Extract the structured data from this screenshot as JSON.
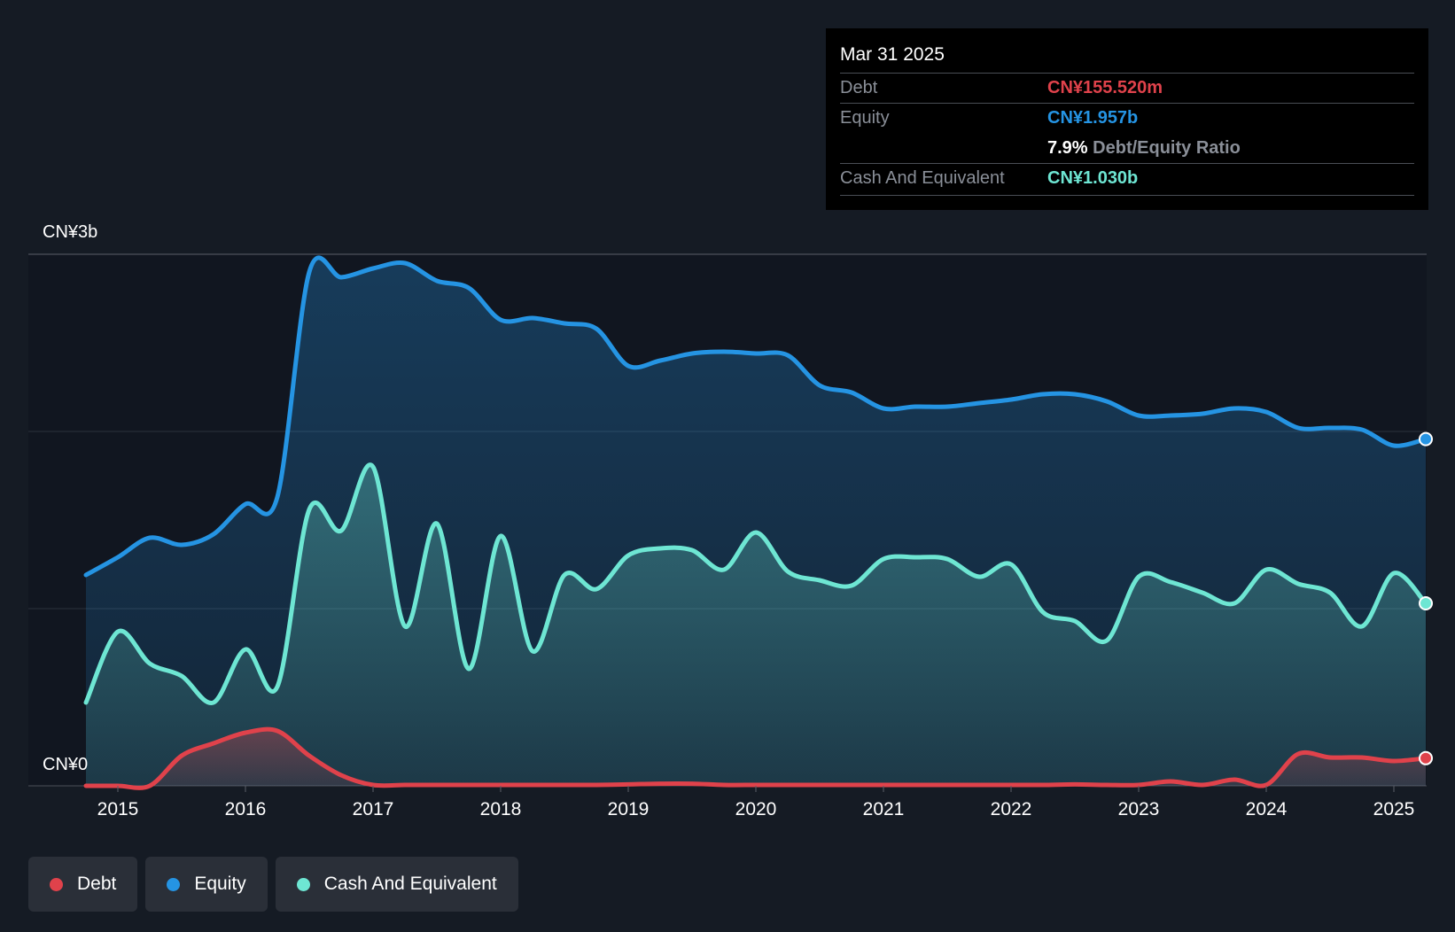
{
  "colors": {
    "debt": "#e0424b",
    "equity": "#2594e3",
    "cash": "#6ee6d3",
    "background": "#151b24",
    "plot_background": "#111620"
  },
  "tooltip": {
    "date": "Mar 31 2025",
    "debt_label": "Debt",
    "debt_value": "CN¥155.520m",
    "equity_label": "Equity",
    "equity_value": "CN¥1.957b",
    "ratio_value": "7.9%",
    "ratio_label": "Debt/Equity Ratio",
    "cash_label": "Cash And Equivalent",
    "cash_value": "CN¥1.030b"
  },
  "legend": {
    "debt": "Debt",
    "equity": "Equity",
    "cash": "Cash And Equivalent"
  },
  "chart_data": {
    "type": "area",
    "title": "",
    "xlabel": "",
    "ylabel": "",
    "ylim": [
      0,
      3
    ],
    "y_unit": "CN¥ billions",
    "y_tick_labels": {
      "top": "CN¥3b",
      "bottom": "CN¥0"
    },
    "grid": true,
    "legend_position": "bottom-left",
    "x_ticks": [
      "2015",
      "2016",
      "2017",
      "2018",
      "2019",
      "2020",
      "2021",
      "2022",
      "2023",
      "2024",
      "2025"
    ],
    "series": [
      {
        "name": "Equity",
        "points": [
          [
            2014.75,
            1.19
          ],
          [
            2015.0,
            1.29
          ],
          [
            2015.25,
            1.4
          ],
          [
            2015.5,
            1.36
          ],
          [
            2015.75,
            1.42
          ],
          [
            2016.0,
            1.59
          ],
          [
            2016.25,
            1.63
          ],
          [
            2016.5,
            2.9
          ],
          [
            2016.75,
            2.87
          ],
          [
            2017.0,
            2.92
          ],
          [
            2017.25,
            2.95
          ],
          [
            2017.5,
            2.85
          ],
          [
            2017.75,
            2.81
          ],
          [
            2018.0,
            2.63
          ],
          [
            2018.25,
            2.64
          ],
          [
            2018.5,
            2.61
          ],
          [
            2018.75,
            2.58
          ],
          [
            2019.0,
            2.37
          ],
          [
            2019.25,
            2.4
          ],
          [
            2019.5,
            2.44
          ],
          [
            2019.75,
            2.45
          ],
          [
            2020.0,
            2.44
          ],
          [
            2020.25,
            2.43
          ],
          [
            2020.5,
            2.26
          ],
          [
            2020.75,
            2.22
          ],
          [
            2021.0,
            2.13
          ],
          [
            2021.25,
            2.14
          ],
          [
            2021.5,
            2.14
          ],
          [
            2021.75,
            2.16
          ],
          [
            2022.0,
            2.18
          ],
          [
            2022.25,
            2.21
          ],
          [
            2022.5,
            2.21
          ],
          [
            2022.75,
            2.17
          ],
          [
            2023.0,
            2.09
          ],
          [
            2023.25,
            2.09
          ],
          [
            2023.5,
            2.1
          ],
          [
            2023.75,
            2.13
          ],
          [
            2024.0,
            2.11
          ],
          [
            2024.25,
            2.02
          ],
          [
            2024.5,
            2.02
          ],
          [
            2024.75,
            2.01
          ],
          [
            2025.0,
            1.92
          ],
          [
            2025.25,
            1.957
          ]
        ]
      },
      {
        "name": "Cash And Equivalent",
        "points": [
          [
            2014.75,
            0.47
          ],
          [
            2015.0,
            0.87
          ],
          [
            2015.25,
            0.69
          ],
          [
            2015.5,
            0.62
          ],
          [
            2015.75,
            0.47
          ],
          [
            2016.0,
            0.77
          ],
          [
            2016.25,
            0.56
          ],
          [
            2016.5,
            1.56
          ],
          [
            2016.75,
            1.44
          ],
          [
            2017.0,
            1.8
          ],
          [
            2017.25,
            0.9
          ],
          [
            2017.5,
            1.48
          ],
          [
            2017.75,
            0.66
          ],
          [
            2018.0,
            1.41
          ],
          [
            2018.25,
            0.76
          ],
          [
            2018.5,
            1.19
          ],
          [
            2018.75,
            1.11
          ],
          [
            2019.0,
            1.3
          ],
          [
            2019.25,
            1.34
          ],
          [
            2019.5,
            1.33
          ],
          [
            2019.75,
            1.22
          ],
          [
            2020.0,
            1.43
          ],
          [
            2020.25,
            1.21
          ],
          [
            2020.5,
            1.16
          ],
          [
            2020.75,
            1.13
          ],
          [
            2021.0,
            1.28
          ],
          [
            2021.25,
            1.29
          ],
          [
            2021.5,
            1.28
          ],
          [
            2021.75,
            1.18
          ],
          [
            2022.0,
            1.25
          ],
          [
            2022.25,
            0.98
          ],
          [
            2022.5,
            0.93
          ],
          [
            2022.75,
            0.82
          ],
          [
            2023.0,
            1.18
          ],
          [
            2023.25,
            1.15
          ],
          [
            2023.5,
            1.09
          ],
          [
            2023.75,
            1.03
          ],
          [
            2024.0,
            1.22
          ],
          [
            2024.25,
            1.14
          ],
          [
            2024.5,
            1.09
          ],
          [
            2024.75,
            0.9
          ],
          [
            2025.0,
            1.2
          ],
          [
            2025.25,
            1.03
          ]
        ]
      },
      {
        "name": "Debt",
        "points": [
          [
            2014.75,
            0.0
          ],
          [
            2015.0,
            0.0
          ],
          [
            2015.25,
            0.0
          ],
          [
            2015.5,
            0.17
          ],
          [
            2015.75,
            0.24
          ],
          [
            2016.0,
            0.3
          ],
          [
            2016.25,
            0.31
          ],
          [
            2016.5,
            0.17
          ],
          [
            2016.75,
            0.06
          ],
          [
            2017.0,
            0.005
          ],
          [
            2017.25,
            0.005
          ],
          [
            2017.5,
            0.005
          ],
          [
            2017.75,
            0.005
          ],
          [
            2018.0,
            0.005
          ],
          [
            2018.25,
            0.005
          ],
          [
            2018.5,
            0.005
          ],
          [
            2018.75,
            0.005
          ],
          [
            2019.0,
            0.008
          ],
          [
            2019.25,
            0.012
          ],
          [
            2019.5,
            0.012
          ],
          [
            2019.75,
            0.005
          ],
          [
            2020.0,
            0.005
          ],
          [
            2020.25,
            0.005
          ],
          [
            2020.5,
            0.005
          ],
          [
            2020.75,
            0.005
          ],
          [
            2021.0,
            0.005
          ],
          [
            2021.25,
            0.005
          ],
          [
            2021.5,
            0.005
          ],
          [
            2021.75,
            0.005
          ],
          [
            2022.0,
            0.005
          ],
          [
            2022.25,
            0.005
          ],
          [
            2022.5,
            0.008
          ],
          [
            2022.75,
            0.005
          ],
          [
            2023.0,
            0.005
          ],
          [
            2023.25,
            0.025
          ],
          [
            2023.5,
            0.005
          ],
          [
            2023.75,
            0.035
          ],
          [
            2024.0,
            0.005
          ],
          [
            2024.25,
            0.18
          ],
          [
            2024.5,
            0.16
          ],
          [
            2024.75,
            0.16
          ],
          [
            2025.0,
            0.14
          ],
          [
            2025.25,
            0.156
          ]
        ]
      }
    ]
  }
}
